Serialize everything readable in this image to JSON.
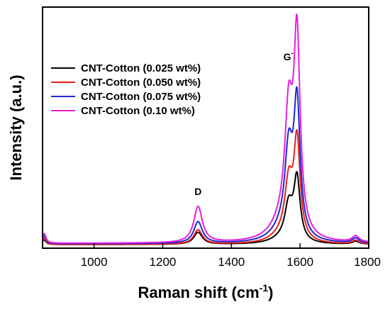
{
  "chart_data": {
    "type": "line",
    "xlabel": "Raman shift (cm",
    "xlabel_sup": "-1",
    "xlabel_close": ")",
    "ylabel": "Intensity (a.u.)",
    "xlim": [
      850,
      1800
    ],
    "ylim": [
      0,
      100
    ],
    "x_ticks": [
      1000,
      1200,
      1400,
      1600,
      1800
    ],
    "y_ticks_labeled": false,
    "legend_position": "upper-left",
    "annotations": [
      {
        "base": "D",
        "sup": "",
        "x": 1303,
        "y": 22
      },
      {
        "base": "G",
        "sup": "-",
        "x": 1566,
        "y": 78
      },
      {
        "base": "G",
        "sup": "+",
        "x": 1590,
        "y": 108
      }
    ],
    "series": [
      {
        "name": "CNT-Cotton (0.025 wt%)",
        "color": "#000000",
        "baseline": 1.5,
        "d_peak": 5,
        "g_minus": 17,
        "g_plus": 28,
        "tail": 1.2
      },
      {
        "name": "CNT-Cotton (0.050 wt%)",
        "color": "#e8201a",
        "baseline": 1.5,
        "d_peak": 6,
        "g_minus": 27,
        "g_plus": 44,
        "tail": 1.5
      },
      {
        "name": "CNT-Cotton (0.075 wt%)",
        "color": "#1f27d6",
        "baseline": 1.8,
        "d_peak": 9,
        "g_minus": 41,
        "g_plus": 59,
        "tail": 2.0
      },
      {
        "name": "CNT-Cotton (0.10 wt%)",
        "color": "#e41fe0",
        "baseline": 2.0,
        "d_peak": 15,
        "g_minus": 57,
        "g_plus": 87,
        "tail": 2.5
      }
    ]
  }
}
